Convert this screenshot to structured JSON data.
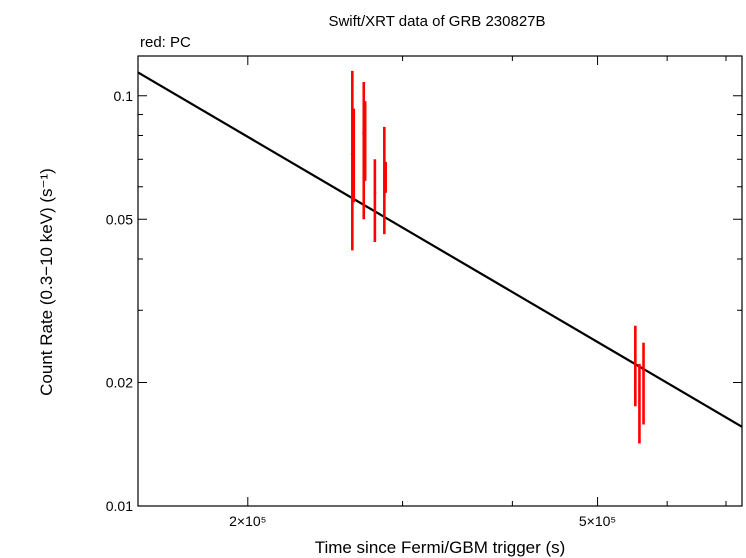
{
  "chart_data": {
    "type": "scatter",
    "title": "Swift/XRT data of GRB 230827B",
    "subtitle": "red: PC",
    "xlabel": "Time since Fermi/GBM trigger (s)",
    "ylabel": "Count Rate (0.3−10 keV) (s⁻¹)",
    "xscale": "log",
    "yscale": "log",
    "xlim": [
      150000,
      730000
    ],
    "ylim": [
      0.01,
      0.125
    ],
    "x_ticks": [
      {
        "value": 200000,
        "label": "2×10⁵"
      },
      {
        "value": 500000,
        "label": "5×10⁵"
      }
    ],
    "x_minor_ticks": [
      300000,
      400000,
      600000,
      700000
    ],
    "y_ticks": [
      {
        "value": 0.01,
        "label": "0.01"
      },
      {
        "value": 0.02,
        "label": "0.02"
      },
      {
        "value": 0.05,
        "label": "0.05"
      },
      {
        "value": 0.1,
        "label": "0.1"
      }
    ],
    "y_minor_ticks": [
      0.03,
      0.04,
      0.06,
      0.07,
      0.08,
      0.09
    ],
    "grid": false,
    "series": [
      {
        "name": "PC",
        "color": "#ff0000",
        "points": [
          {
            "x": 263000,
            "y": 0.072,
            "ylo": 0.042,
            "yhi": 0.115,
            "xlo": 262000,
            "xhi": 264000
          },
          {
            "x": 264000,
            "y": 0.062,
            "ylo": 0.055,
            "yhi": 0.093,
            "xlo": 263300,
            "xhi": 264700
          },
          {
            "x": 271000,
            "y": 0.081,
            "ylo": 0.05,
            "yhi": 0.108,
            "xlo": 270000,
            "xhi": 272000
          },
          {
            "x": 272000,
            "y": 0.068,
            "ylo": 0.062,
            "yhi": 0.097,
            "xlo": 271300,
            "xhi": 272700
          },
          {
            "x": 279000,
            "y": 0.058,
            "ylo": 0.044,
            "yhi": 0.07,
            "xlo": 278000,
            "xhi": 280000
          },
          {
            "x": 286000,
            "y": 0.063,
            "ylo": 0.046,
            "yhi": 0.084,
            "xlo": 285000,
            "xhi": 287000
          },
          {
            "x": 287000,
            "y": 0.061,
            "ylo": 0.058,
            "yhi": 0.069,
            "xlo": 286300,
            "xhi": 287700
          },
          {
            "x": 552000,
            "y": 0.02,
            "ylo": 0.0175,
            "yhi": 0.0275,
            "xlo": 550500,
            "xhi": 553500
          },
          {
            "x": 558000,
            "y": 0.0195,
            "ylo": 0.0142,
            "yhi": 0.0222,
            "xlo": 556500,
            "xhi": 559500
          },
          {
            "x": 564000,
            "y": 0.02,
            "ylo": 0.0158,
            "yhi": 0.025,
            "xlo": 562500,
            "xhi": 565500
          }
        ]
      }
    ],
    "model": {
      "type": "line",
      "color": "#000000",
      "x": [
        150000,
        730000
      ],
      "y": [
        0.114,
        0.0156
      ]
    }
  }
}
